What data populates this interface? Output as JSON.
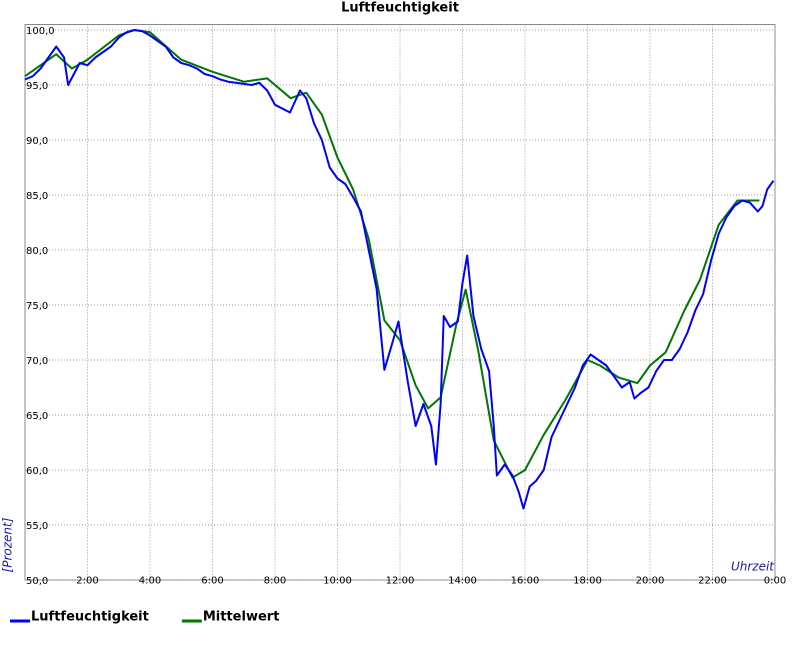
{
  "chart_data": {
    "type": "line",
    "title": "Luftfeuchtigkeit",
    "y_label": "[Prozent]",
    "x_label": "Uhrzeit",
    "xlim": [
      0,
      24
    ],
    "ylim": [
      50,
      100.5
    ],
    "grid": true,
    "xticks": [
      {
        "value": 2,
        "label": "2:00"
      },
      {
        "value": 4,
        "label": "4:00"
      },
      {
        "value": 6,
        "label": "6:00"
      },
      {
        "value": 8,
        "label": "8:00"
      },
      {
        "value": 10,
        "label": "10:00"
      },
      {
        "value": 12,
        "label": "12:00"
      },
      {
        "value": 14,
        "label": "14:00"
      },
      {
        "value": 16,
        "label": "16:00"
      },
      {
        "value": 18,
        "label": "18:00"
      },
      {
        "value": 20,
        "label": "20:00"
      },
      {
        "value": 22,
        "label": "22:00"
      },
      {
        "value": 24,
        "label": "0:00"
      }
    ],
    "yticks": [
      {
        "value": 50,
        "label": "50,0"
      },
      {
        "value": 55,
        "label": "55,0"
      },
      {
        "value": 60,
        "label": "60,0"
      },
      {
        "value": 65,
        "label": "65,0"
      },
      {
        "value": 70,
        "label": "70,0"
      },
      {
        "value": 75,
        "label": "75,0"
      },
      {
        "value": 80,
        "label": "80,0"
      },
      {
        "value": 85,
        "label": "85,0"
      },
      {
        "value": 90,
        "label": "90,0"
      },
      {
        "value": 95,
        "label": "95,0"
      },
      {
        "value": 100,
        "label": "100,0"
      }
    ],
    "series": [
      {
        "name": "Luftfeuchtigkeit",
        "color": "#0000ff",
        "x": [
          0,
          0.25,
          0.5,
          0.75,
          1.0,
          1.25,
          1.38,
          1.75,
          2.0,
          2.25,
          2.5,
          2.75,
          3.0,
          3.25,
          3.5,
          3.75,
          4.0,
          4.25,
          4.5,
          4.75,
          5.0,
          5.25,
          5.5,
          5.75,
          6.0,
          6.25,
          6.5,
          6.75,
          7.0,
          7.25,
          7.5,
          7.75,
          8.0,
          8.48,
          8.8,
          9.0,
          9.25,
          9.5,
          9.75,
          10.0,
          10.25,
          10.5,
          10.75,
          11.0,
          11.25,
          11.5,
          11.75,
          11.95,
          12.25,
          12.5,
          12.75,
          13.0,
          13.15,
          13.3,
          13.4,
          13.6,
          13.85,
          14.0,
          14.15,
          14.35,
          14.6,
          14.85,
          15.0,
          15.1,
          15.35,
          15.6,
          15.8,
          15.95,
          16.15,
          16.35,
          16.6,
          16.85,
          17.1,
          17.35,
          17.6,
          17.85,
          18.1,
          18.35,
          18.6,
          18.85,
          19.1,
          19.35,
          19.5,
          19.7,
          19.95,
          20.2,
          20.45,
          20.7,
          20.95,
          21.2,
          21.45,
          21.7,
          21.95,
          22.2,
          22.45,
          22.7,
          22.95,
          23.2,
          23.45,
          23.6,
          23.75,
          23.95
        ],
        "values": [
          95.5,
          95.8,
          96.5,
          97.5,
          98.5,
          97.5,
          95.0,
          97,
          96.8,
          97.5,
          98,
          98.5,
          99.3,
          99.8,
          100,
          99.9,
          99.5,
          99,
          98.5,
          97.5,
          97,
          96.8,
          96.5,
          96,
          95.8,
          95.5,
          95.3,
          95.2,
          95.1,
          95,
          95.2,
          94.5,
          93.2,
          92.5,
          94.5,
          93.8,
          91.5,
          90,
          87.5,
          86.5,
          86,
          84.8,
          83.5,
          80,
          76.5,
          69.1,
          71.5,
          73.5,
          68,
          64,
          66,
          64,
          60.5,
          66,
          74,
          73,
          73.5,
          77,
          79.5,
          74,
          71,
          69,
          64,
          59.5,
          60.5,
          59.5,
          58,
          56.5,
          58.5,
          59,
          60,
          63,
          64.5,
          66,
          67.5,
          69.5,
          70.5,
          70,
          69.5,
          68.5,
          67.5,
          68,
          66.5,
          67,
          67.5,
          69,
          70,
          70,
          71,
          72.5,
          74.5,
          76,
          79,
          81.5,
          83,
          84,
          84.5,
          84.3,
          83.5,
          84,
          85.5,
          86.3
        ]
      },
      {
        "name": "Mittelwert",
        "color": "#007700",
        "x": [
          0,
          1.0,
          1.5,
          2.0,
          3.0,
          3.5,
          4.0,
          5.0,
          6.0,
          7.0,
          7.75,
          8.5,
          9.0,
          9.5,
          10.0,
          10.5,
          11.0,
          11.5,
          12.0,
          12.5,
          12.9,
          13.3,
          13.8,
          14.1,
          14.5,
          15.0,
          15.6,
          16.0,
          16.6,
          17.3,
          18.0,
          18.4,
          19.0,
          19.6,
          20.0,
          20.5,
          21.1,
          21.6,
          22.2,
          22.8,
          23.2,
          23.5
        ],
        "values": [
          95.8,
          97.8,
          96.5,
          97.3,
          99.5,
          100,
          99.8,
          97.3,
          96.2,
          95.3,
          95.6,
          93.8,
          94.3,
          92.3,
          88.4,
          85.5,
          81,
          73.6,
          71.8,
          67.7,
          65.6,
          66.6,
          73.2,
          76.4,
          70.9,
          62.7,
          59.3,
          60,
          63.2,
          66.4,
          70,
          69.5,
          68.4,
          67.9,
          69.5,
          70.7,
          74.5,
          77.3,
          82.3,
          84.5,
          84.5,
          84.5
        ]
      }
    ]
  }
}
